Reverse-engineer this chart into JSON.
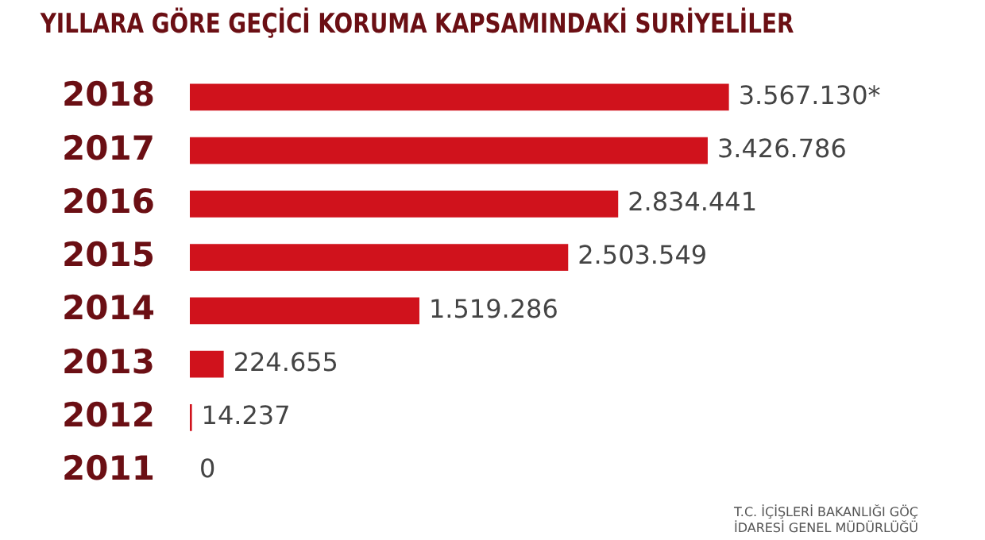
{
  "chart_data": {
    "type": "bar",
    "orientation": "horizontal",
    "title": "YILLARA GÖRE GEÇİCİ KORUMA KAPSAMINDAKİ SURİYELİLER",
    "categories": [
      "2018",
      "2017",
      "2016",
      "2015",
      "2014",
      "2013",
      "2012",
      "2011"
    ],
    "values": [
      3567130,
      3426786,
      2834441,
      2503549,
      1519286,
      224655,
      14237,
      0
    ],
    "value_labels": [
      "3.567.130*",
      "3.426.786",
      "2.834.441",
      "2.503.549",
      "1.519.286",
      "224.655",
      "14.237",
      "0"
    ],
    "color": "#d0121c",
    "tick_labels": "y",
    "grid": false,
    "legend": false,
    "annotations": [
      "T.C. İÇİŞLERİ BAKANLIĞI GÖÇ İDARESİ GENEL MÜDÜRLÜĞÜ"
    ]
  }
}
